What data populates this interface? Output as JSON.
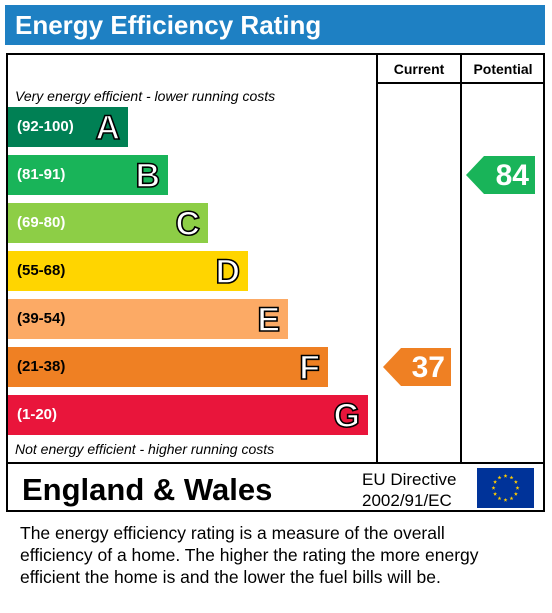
{
  "title": "Energy Efficiency Rating",
  "columns": {
    "current": "Current",
    "potential": "Potential"
  },
  "top_note": "Very energy efficient - lower running costs",
  "bottom_note": "Not energy efficient - higher running costs",
  "chart_data": {
    "type": "bar",
    "title": "Energy Efficiency Rating",
    "categories": [
      "A",
      "B",
      "C",
      "D",
      "E",
      "F",
      "G"
    ],
    "ranges": [
      "(92-100)",
      "(81-91)",
      "(69-80)",
      "(55-68)",
      "(39-54)",
      "(21-38)",
      "(1-20)"
    ],
    "colors": [
      "#008054",
      "#19b459",
      "#8dce46",
      "#ffd500",
      "#fcaa65",
      "#ef8023",
      "#e9153b"
    ],
    "range_text_colors": [
      "#ffffff",
      "#ffffff",
      "#ffffff",
      "#000000",
      "#000000",
      "#000000",
      "#ffffff"
    ],
    "current": {
      "value": 37,
      "band": "F",
      "color": "#ef8023"
    },
    "potential": {
      "value": 84,
      "band": "B",
      "color": "#19b459"
    }
  },
  "footer": {
    "region": "England & Wales",
    "directive_line1": "EU Directive",
    "directive_line2": "2002/91/EC",
    "flag_icon": "eu-flag-icon"
  },
  "description": "The energy efficiency rating is a measure of the overall\nefficiency of a home.  The higher the rating the more energy\nefficient the home is and the lower the fuel bills will be."
}
